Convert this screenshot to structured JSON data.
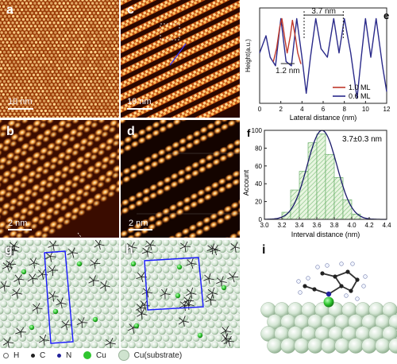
{
  "panels": {
    "a": {
      "label": "a",
      "scalebar": "10 nm"
    },
    "b": {
      "label": "b",
      "scalebar": "2 nm"
    },
    "c": {
      "label": "c",
      "scalebar": "10 nm"
    },
    "d": {
      "label": "d",
      "scalebar": "2 nm"
    },
    "g": {
      "label": "g"
    },
    "h": {
      "label": "h"
    },
    "i": {
      "label": "i"
    }
  },
  "colors": {
    "stm_dark": "#2a0800",
    "stm_mid": "#b8480a",
    "stm_bright": "#fff0c0",
    "cu": "#2fc52f",
    "substrate": "#d8e8d8",
    "cell": "#1a1aff"
  },
  "legend": [
    {
      "symbol": "H",
      "label": "H",
      "color": "#ffffff"
    },
    {
      "symbol": "C",
      "label": "C",
      "color": "#222222"
    },
    {
      "symbol": "N",
      "label": "N",
      "color": "#22229a"
    },
    {
      "symbol": "Cu",
      "label": "Cu",
      "color": "#2fc52f"
    },
    {
      "symbol": "Cu(substrate)",
      "label": "Cu(substrate)",
      "color": "#cfe3cf"
    }
  ],
  "chart_data": [
    {
      "panel": "e",
      "type": "line",
      "xlabel": "Lateral distance (nm)",
      "ylabel": "Height(a.u.)",
      "xlim": [
        0,
        12
      ],
      "xticks": [
        0,
        2,
        4,
        6,
        8,
        10,
        12
      ],
      "annotations": [
        "3.7 nm",
        "1.2 nm"
      ],
      "series": [
        {
          "name": "1.0 ML",
          "color": "#c0392b",
          "x": [
            1.3,
            1.6,
            1.9,
            2.1,
            2.4,
            2.6,
            2.9,
            3.1,
            3.4,
            3.6,
            3.9
          ],
          "y": [
            0.45,
            0.6,
            0.85,
            0.95,
            0.7,
            0.55,
            0.75,
            0.93,
            0.72,
            0.55,
            0.42
          ]
        },
        {
          "name": "0.6 ML",
          "color": "#2a2a8a",
          "x": [
            0,
            0.6,
            1.0,
            1.5,
            2.0,
            2.5,
            3.0,
            3.5,
            4.0,
            4.4,
            4.8,
            5.3,
            5.8,
            6.4,
            7.0,
            7.5,
            8.0,
            8.6,
            9.2,
            9.6,
            10.0,
            10.5,
            11.0,
            11.6,
            12.0
          ],
          "y": [
            0.55,
            0.75,
            0.5,
            0.4,
            0.95,
            0.45,
            0.4,
            0.95,
            0.5,
            0.08,
            0.5,
            0.95,
            0.6,
            0.5,
            0.95,
            0.55,
            0.95,
            0.55,
            0.02,
            0.5,
            0.95,
            0.5,
            0.95,
            0.4,
            0.1
          ]
        }
      ]
    },
    {
      "panel": "f",
      "type": "bar",
      "xlabel": "Interval distance (nm)",
      "ylabel": "Account",
      "annotation": "3.7±0.3 nm",
      "xlim": [
        3.0,
        4.4
      ],
      "xticks": [
        3.0,
        3.2,
        3.4,
        3.6,
        3.8,
        4.0,
        4.2,
        4.4
      ],
      "ylim": [
        0,
        100
      ],
      "yticks": [
        0,
        20,
        40,
        60,
        80,
        100
      ],
      "bin_width": 0.1,
      "x": [
        3.25,
        3.35,
        3.45,
        3.55,
        3.65,
        3.75,
        3.85,
        3.95,
        4.05
      ],
      "values": [
        8,
        33,
        54,
        86,
        96,
        73,
        47,
        22,
        6
      ],
      "fit": {
        "mean": 3.66,
        "sigma": 0.17,
        "amplitude": 100
      }
    }
  ]
}
